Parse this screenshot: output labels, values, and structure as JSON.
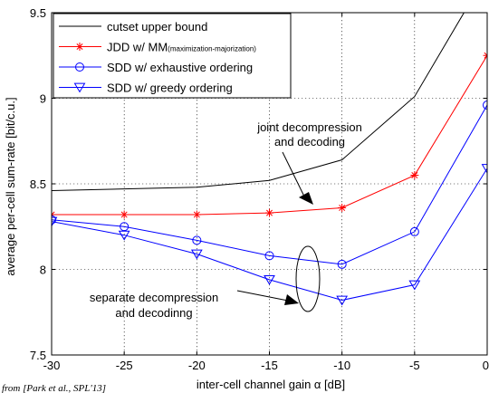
{
  "chart_data": {
    "type": "line",
    "xlabel": "inter-cell channel gain α [dB]",
    "ylabel": "average per-cell sum-rate [bit/c.u.]",
    "xlim": [
      -30,
      0
    ],
    "ylim": [
      7.5,
      9.5
    ],
    "xticks": [
      -30,
      -25,
      -20,
      -15,
      -10,
      -5,
      0
    ],
    "yticks": [
      7.5,
      8,
      8.5,
      9,
      9.5
    ],
    "xtick_labels": [
      "-30",
      "-25",
      "-20",
      "-15",
      "-10",
      "-5",
      "0"
    ],
    "ytick_labels": [
      "7.5",
      "8",
      "8.5",
      "9",
      "9.5"
    ],
    "grid": true,
    "legend_position": "top-left",
    "x": [
      -30,
      -25,
      -20,
      -15,
      -10,
      -5,
      0
    ],
    "series": [
      {
        "name": "cutset upper bound",
        "color": "#000000",
        "marker": "none",
        "values": [
          8.46,
          8.47,
          8.48,
          8.52,
          8.64,
          9.01,
          9.73
        ]
      },
      {
        "name": "JDD w/ MM",
        "name_suffix": "(maximization-majorization)",
        "color": "#ff0000",
        "marker": "asterisk",
        "values": [
          8.32,
          8.32,
          8.32,
          8.33,
          8.36,
          8.55,
          9.25
        ]
      },
      {
        "name": "SDD w/ exhaustive ordering",
        "color": "#0000ff",
        "marker": "circle",
        "values": [
          8.29,
          8.25,
          8.17,
          8.08,
          8.03,
          8.22,
          8.96
        ]
      },
      {
        "name": "SDD w/ greedy ordering",
        "color": "#0000ff",
        "marker": "triangle-down",
        "values": [
          8.28,
          8.2,
          8.09,
          7.94,
          7.82,
          7.91,
          8.59
        ]
      }
    ],
    "annotations": [
      {
        "lines": [
          "joint decompression",
          "and decoding"
        ]
      },
      {
        "lines": [
          "separate decompression",
          "and decodinng"
        ]
      }
    ]
  },
  "credit": "from [Park et al., SPL'13]"
}
